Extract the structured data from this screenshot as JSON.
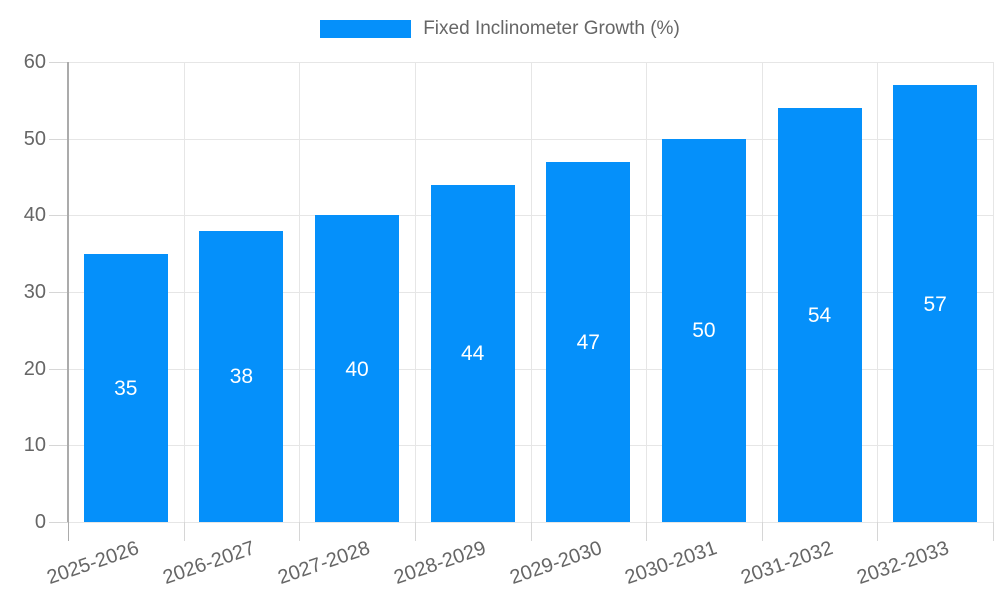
{
  "chart_data": {
    "type": "bar",
    "title": "",
    "legend_entries": [
      "Fixed Inclinometer Growth (%)"
    ],
    "legend_position": "top",
    "categories": [
      "2025-2026",
      "2026-2027",
      "2027-2028",
      "2028-2029",
      "2029-2030",
      "2030-2031",
      "2031-2032",
      "2032-2033"
    ],
    "values": [
      35,
      38,
      40,
      44,
      47,
      50,
      54,
      57
    ],
    "value_labels": [
      "35",
      "38",
      "40",
      "44",
      "47",
      "50",
      "54",
      "57"
    ],
    "xlabel": "",
    "ylabel": "",
    "ylim": [
      0,
      60
    ],
    "yticks": [
      0,
      10,
      20,
      30,
      40,
      50,
      60
    ],
    "grid": true,
    "colors": {
      "bar": "#0590fa",
      "axis_text": "#666666",
      "gridline": "#e6e6e6",
      "axis_line": "#ababab",
      "tick": "#d6d6d6",
      "value_label": "#ffffff",
      "background": "#ffffff"
    }
  }
}
